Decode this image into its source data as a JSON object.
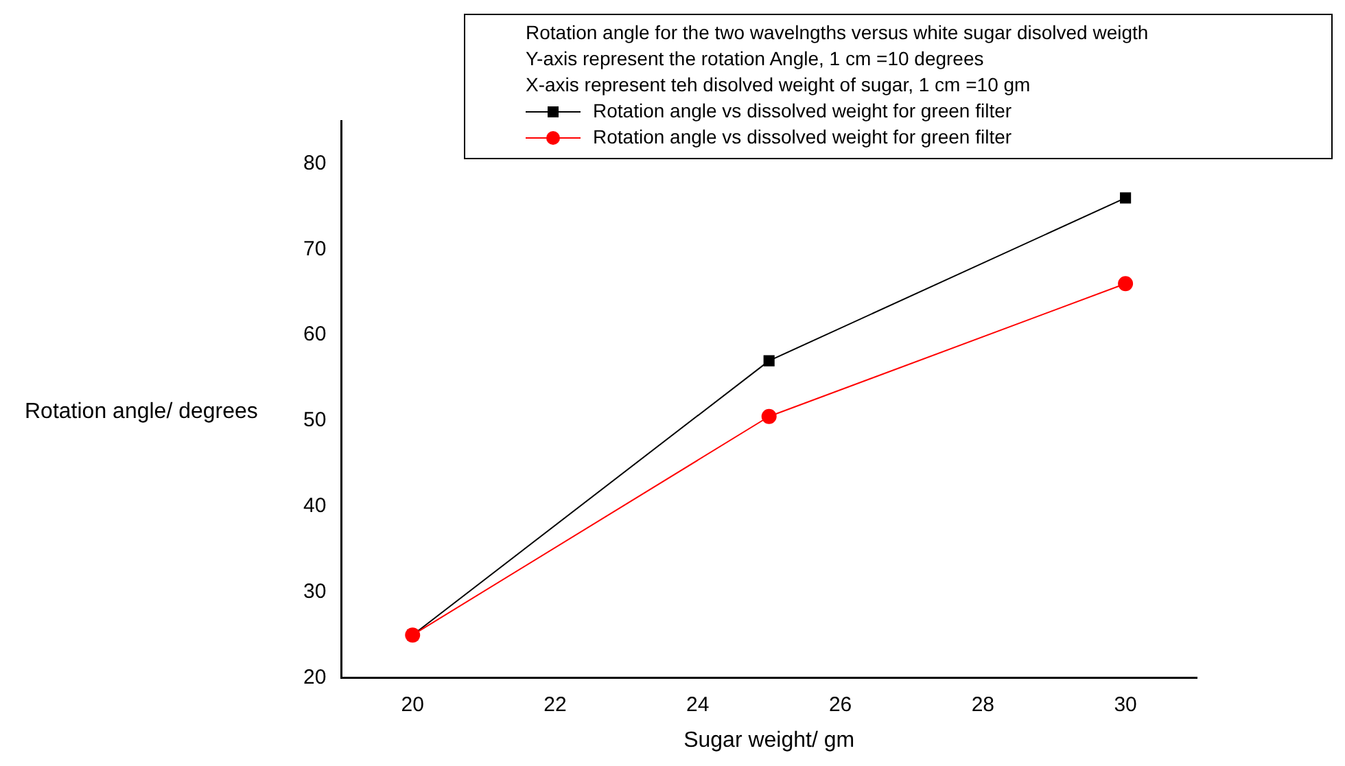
{
  "chart_data": {
    "type": "line",
    "xlabel": "Sugar weight/ gm",
    "ylabel": "Rotation angle/ degrees",
    "annotations": [
      "Rotation angle for the two wavelngths versus white sugar disolved weigth",
      "Y-axis represent the rotation Angle, 1 cm =10 degrees",
      "X-axis represent teh disolved weight of sugar, 1 cm =10 gm"
    ],
    "x": [
      20,
      25,
      30
    ],
    "series": [
      {
        "name": "Rotation angle vs dissolved weight for green filter",
        "color": "#000000",
        "marker": "square",
        "values": [
          25,
          57,
          76
        ]
      },
      {
        "name": "Rotation angle vs dissolved weight for green filter",
        "color": "#ff0000",
        "marker": "circle",
        "values": [
          25,
          50.5,
          66
        ]
      }
    ],
    "xlim": [
      19,
      31
    ],
    "xticks": [
      20,
      22,
      24,
      26,
      28,
      30
    ],
    "ylim": [
      20,
      85
    ],
    "yticks": [
      20,
      30,
      40,
      50,
      60,
      70,
      80
    ],
    "grid": false,
    "legend": "top right",
    "line_style": "solid"
  }
}
